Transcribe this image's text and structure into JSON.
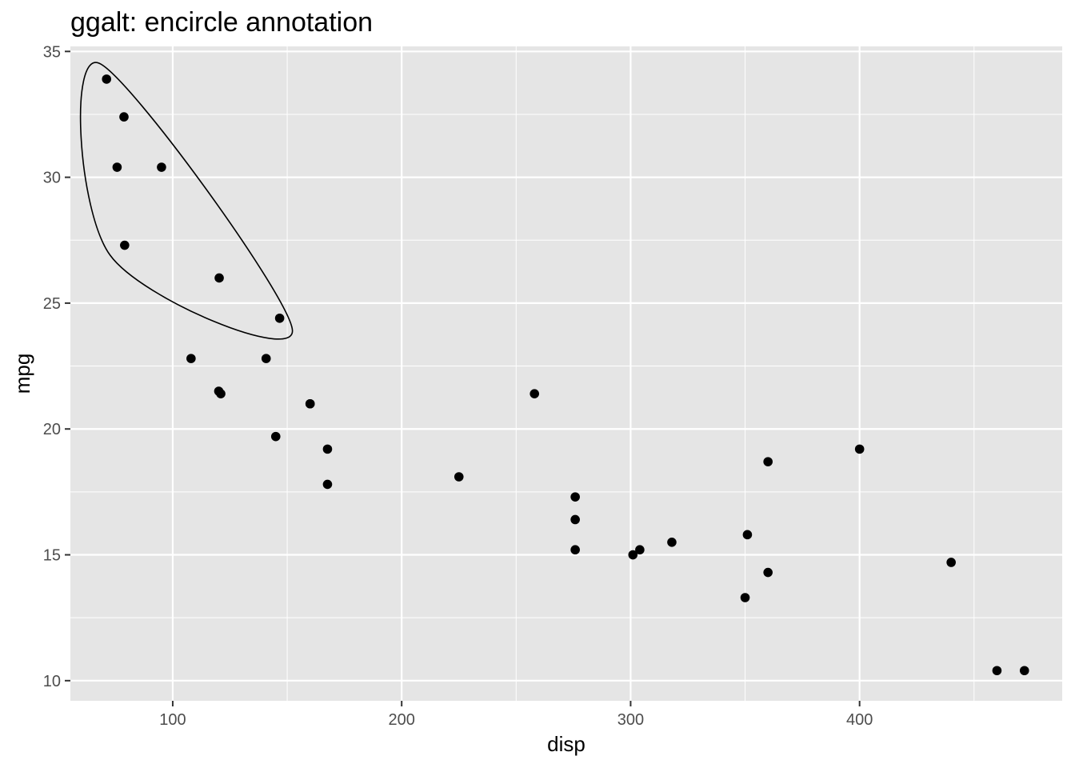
{
  "chart_data": {
    "type": "scatter",
    "title": "ggalt: encircle annotation",
    "xlabel": "disp",
    "ylabel": "mpg",
    "xlim": [
      55.3,
      488.5
    ],
    "ylim": [
      9.2,
      35.2
    ],
    "x_ticks": [
      100,
      200,
      300,
      400
    ],
    "x_tick_labels": [
      "100",
      "200",
      "300",
      "400"
    ],
    "y_ticks": [
      10,
      15,
      20,
      25,
      30,
      35
    ],
    "y_tick_labels": [
      "10",
      "15",
      "20",
      "25",
      "30",
      "35"
    ],
    "grid": true,
    "legend": "none",
    "point_color": "#000000",
    "panel_color": "#e5e5e5",
    "grid_color": "#ffffff",
    "series": [
      {
        "x": [
          160,
          160,
          108,
          258,
          360,
          225,
          360,
          146.7,
          140.8,
          167.6,
          167.6,
          275.8,
          275.8,
          275.8,
          472,
          460,
          440,
          78.7,
          75.7,
          71.1,
          120.1,
          318,
          304,
          350,
          400,
          79,
          120.3,
          95.1,
          351,
          145,
          301,
          121
        ],
        "y": [
          21,
          21,
          22.8,
          21.4,
          18.7,
          18.1,
          14.3,
          24.4,
          22.8,
          19.2,
          17.8,
          16.4,
          17.3,
          15.2,
          10.4,
          10.4,
          14.7,
          32.4,
          30.4,
          33.9,
          21.5,
          15.5,
          15.2,
          13.3,
          19.2,
          27.3,
          26,
          30.4,
          15.8,
          19.7,
          15,
          21.4
        ]
      }
    ],
    "encircle": {
      "x": [
        78.7,
        75.7,
        71.1,
        79,
        120.3,
        95.1,
        146.7
      ],
      "y": [
        32.4,
        30.4,
        33.9,
        27.3,
        26,
        30.4,
        24.4
      ],
      "color": "#000000"
    }
  }
}
